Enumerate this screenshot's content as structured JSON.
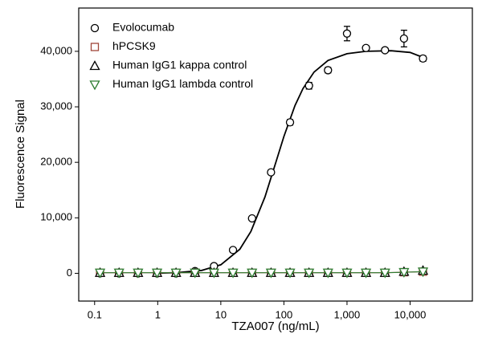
{
  "chart_data": {
    "type": "scatter",
    "x_label": "TZA007 (ng/mL)",
    "y_label": "Fluorescence Signal",
    "x_log": true,
    "xlim": [
      0.056,
      97000
    ],
    "xticks": [
      0.1,
      1,
      10,
      100,
      {
        "value": 1000,
        "label": "1,000"
      },
      {
        "value": 10000,
        "label": "10,000"
      }
    ],
    "ylim": [
      -5000,
      47800
    ],
    "yticks": [
      0,
      {
        "value": 10000,
        "label": "10,000"
      },
      {
        "value": 20000,
        "label": "20,000"
      },
      {
        "value": 30000,
        "label": "30,000"
      },
      {
        "value": 40000,
        "label": "40,000"
      }
    ],
    "x": [
      0.122,
      0.244,
      0.488,
      0.977,
      1.95,
      3.9,
      7.8,
      15.6,
      31.25,
      62.5,
      125,
      250,
      500,
      1000,
      2000,
      4000,
      8000,
      16000
    ],
    "series": [
      {
        "name": "Evolocumab",
        "marker": "circle",
        "color": "#000000",
        "connect": false,
        "values": [
          0,
          0,
          0,
          0,
          0,
          400,
          1300,
          4200,
          9900,
          18200,
          27200,
          33800,
          36600,
          43200,
          40600,
          40200,
          42300,
          38700
        ],
        "errors": [
          200,
          200,
          150,
          150,
          200,
          200,
          300,
          400,
          300,
          400,
          500,
          600,
          500,
          1300,
          400,
          400,
          1500,
          500
        ]
      },
      {
        "name": "hPCSK9",
        "marker": "square",
        "color": "#a0463a",
        "connect": true,
        "values": [
          100,
          100,
          100,
          100,
          100,
          100,
          100,
          100,
          100,
          100,
          100,
          100,
          100,
          100,
          100,
          100,
          200,
          300
        ]
      },
      {
        "name": "Human IgG1 kappa control",
        "marker": "triangle-up",
        "color": "#000000",
        "connect": false,
        "values": [
          100,
          100,
          100,
          100,
          100,
          100,
          100,
          100,
          100,
          100,
          100,
          100,
          100,
          100,
          100,
          100,
          300,
          500
        ]
      },
      {
        "name": "Human IgG1 lambda control",
        "marker": "triangle-down",
        "color": "#2e7d32",
        "connect": true,
        "values": [
          100,
          100,
          100,
          100,
          100,
          100,
          100,
          100,
          100,
          100,
          100,
          100,
          100,
          100,
          100,
          100,
          200,
          300
        ]
      }
    ],
    "fit": {
      "color": "#000000",
      "x": [
        1,
        2,
        5,
        10,
        20,
        30,
        50,
        75,
        100,
        150,
        200,
        300,
        500,
        1000,
        2000,
        5000,
        10000,
        16000
      ],
      "values": [
        40,
        121,
        522,
        1538,
        4328,
        7540,
        13753,
        20100,
        24648,
        30226,
        33278,
        36250,
        38359,
        39571,
        40000,
        40100,
        39800,
        38900
      ]
    }
  }
}
